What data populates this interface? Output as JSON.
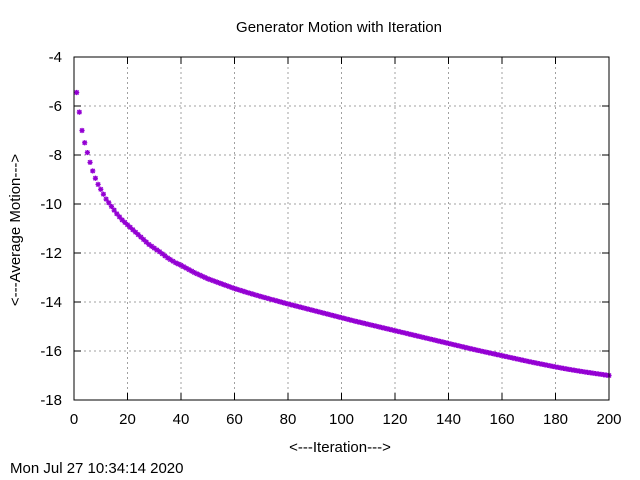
{
  "timestamp": "Mon Jul 27 10:34:14 2020",
  "colors": {
    "series": "#9400d3",
    "grid": "#a0a0a0",
    "axis": "#000000"
  },
  "chart_data": {
    "type": "scatter",
    "title": "Generator Motion with Iteration",
    "xlabel": "<---Iteration--->",
    "ylabel": "<---Average Motion--->",
    "xlim": [
      0,
      200
    ],
    "ylim": [
      -18,
      -4
    ],
    "xticks": [
      0,
      20,
      40,
      60,
      80,
      100,
      120,
      140,
      160,
      180,
      200
    ],
    "yticks": [
      -18,
      -16,
      -14,
      -12,
      -10,
      -8,
      -6,
      -4
    ],
    "grid": true,
    "marker": "star",
    "series": [
      {
        "x": [
          1,
          2,
          3,
          4,
          5,
          6,
          7,
          8,
          9,
          10,
          12,
          14,
          16,
          18,
          20,
          22,
          24,
          26,
          28,
          30,
          32,
          35,
          38,
          40,
          45,
          50,
          55,
          60,
          65,
          70,
          75,
          80,
          85,
          90,
          95,
          100,
          105,
          110,
          115,
          120,
          125,
          130,
          135,
          140,
          145,
          150,
          155,
          160,
          165,
          170,
          175,
          180,
          185,
          190,
          195,
          200
        ],
        "y": [
          -5.45,
          -6.25,
          -7.0,
          -7.5,
          -7.9,
          -8.3,
          -8.65,
          -8.95,
          -9.2,
          -9.4,
          -9.8,
          -10.1,
          -10.4,
          -10.65,
          -10.85,
          -11.05,
          -11.25,
          -11.45,
          -11.65,
          -11.8,
          -11.95,
          -12.2,
          -12.4,
          -12.5,
          -12.8,
          -13.05,
          -13.25,
          -13.45,
          -13.62,
          -13.78,
          -13.93,
          -14.08,
          -14.22,
          -14.36,
          -14.5,
          -14.64,
          -14.78,
          -14.91,
          -15.04,
          -15.17,
          -15.3,
          -15.43,
          -15.56,
          -15.69,
          -15.82,
          -15.95,
          -16.07,
          -16.19,
          -16.31,
          -16.43,
          -16.54,
          -16.65,
          -16.75,
          -16.84,
          -16.92,
          -17.0
        ]
      }
    ]
  }
}
